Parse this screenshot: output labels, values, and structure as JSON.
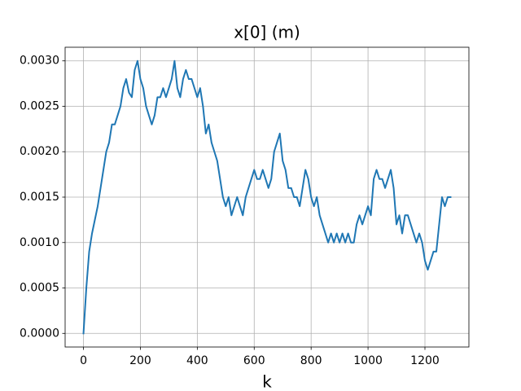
{
  "chart_data": {
    "type": "line",
    "title": "x[0] (m)",
    "x_label": "k",
    "color": "#1f77b4",
    "grid": true,
    "x": [
      0,
      10,
      20,
      30,
      40,
      50,
      60,
      70,
      80,
      90,
      100,
      110,
      120,
      130,
      140,
      150,
      160,
      170,
      180,
      190,
      200,
      210,
      220,
      230,
      240,
      250,
      260,
      270,
      280,
      290,
      300,
      310,
      320,
      330,
      340,
      350,
      360,
      370,
      380,
      390,
      400,
      410,
      420,
      430,
      440,
      450,
      460,
      470,
      480,
      490,
      500,
      510,
      520,
      530,
      540,
      550,
      560,
      570,
      580,
      590,
      600,
      610,
      620,
      630,
      640,
      650,
      660,
      670,
      680,
      690,
      700,
      710,
      720,
      730,
      740,
      750,
      760,
      770,
      780,
      790,
      800,
      810,
      820,
      830,
      840,
      850,
      860,
      870,
      880,
      890,
      900,
      910,
      920,
      930,
      940,
      950,
      960,
      970,
      980,
      990,
      1000,
      1010,
      1020,
      1030,
      1040,
      1050,
      1060,
      1070,
      1080,
      1090,
      1100,
      1110,
      1120,
      1130,
      1140,
      1150,
      1160,
      1170,
      1180,
      1190,
      1200,
      1210,
      1220,
      1230,
      1240,
      1250,
      1260,
      1270,
      1280,
      1290
    ],
    "values": [
      0,
      0.0005,
      0.0009,
      0.0011,
      0.00125,
      0.0014,
      0.0016,
      0.0018,
      0.002,
      0.0021,
      0.0023,
      0.0023,
      0.0024,
      0.0025,
      0.0027,
      0.0028,
      0.00265,
      0.0026,
      0.0029,
      0.003,
      0.0028,
      0.0027,
      0.0025,
      0.0024,
      0.0023,
      0.0024,
      0.0026,
      0.0026,
      0.0027,
      0.0026,
      0.0027,
      0.0028,
      0.003,
      0.0027,
      0.0026,
      0.0028,
      0.0029,
      0.0028,
      0.0028,
      0.0027,
      0.0026,
      0.0027,
      0.0025,
      0.0022,
      0.0023,
      0.0021,
      0.002,
      0.0019,
      0.0017,
      0.0015,
      0.0014,
      0.0015,
      0.0013,
      0.0014,
      0.0015,
      0.0014,
      0.0013,
      0.0015,
      0.0016,
      0.0017,
      0.0018,
      0.0017,
      0.0017,
      0.0018,
      0.0017,
      0.0016,
      0.0017,
      0.002,
      0.0021,
      0.0022,
      0.0019,
      0.0018,
      0.0016,
      0.0016,
      0.0015,
      0.0015,
      0.0014,
      0.0016,
      0.0018,
      0.0017,
      0.0015,
      0.0014,
      0.0015,
      0.0013,
      0.0012,
      0.0011,
      0.001,
      0.0011,
      0.001,
      0.0011,
      0.001,
      0.0011,
      0.001,
      0.0011,
      0.001,
      0.001,
      0.0012,
      0.0013,
      0.0012,
      0.0013,
      0.0014,
      0.0013,
      0.0017,
      0.0018,
      0.0017,
      0.0017,
      0.0016,
      0.0017,
      0.0018,
      0.0016,
      0.0012,
      0.0013,
      0.0011,
      0.0013,
      0.0013,
      0.0012,
      0.0011,
      0.001,
      0.0011,
      0.001,
      0.0008,
      0.0007,
      0.0008,
      0.0009,
      0.0009,
      0.0012,
      0.0015,
      0.0014,
      0.0015,
      0.0015
    ],
    "xlim": [
      -64.5,
      1354.5
    ],
    "xticks": [
      0,
      200,
      400,
      600,
      800,
      1000,
      1200
    ],
    "ylim": [
      -0.00015,
      0.00315
    ],
    "yticks": [
      {
        "value": 0,
        "label": "0.0000"
      },
      {
        "value": 0.0005,
        "label": "0.0005"
      },
      {
        "value": 0.001,
        "label": "0.0010"
      },
      {
        "value": 0.0015,
        "label": "0.0015"
      },
      {
        "value": 0.002,
        "label": "0.0020"
      },
      {
        "value": 0.0025,
        "label": "0.0025"
      },
      {
        "value": 0.003,
        "label": "0.0030"
      }
    ]
  }
}
